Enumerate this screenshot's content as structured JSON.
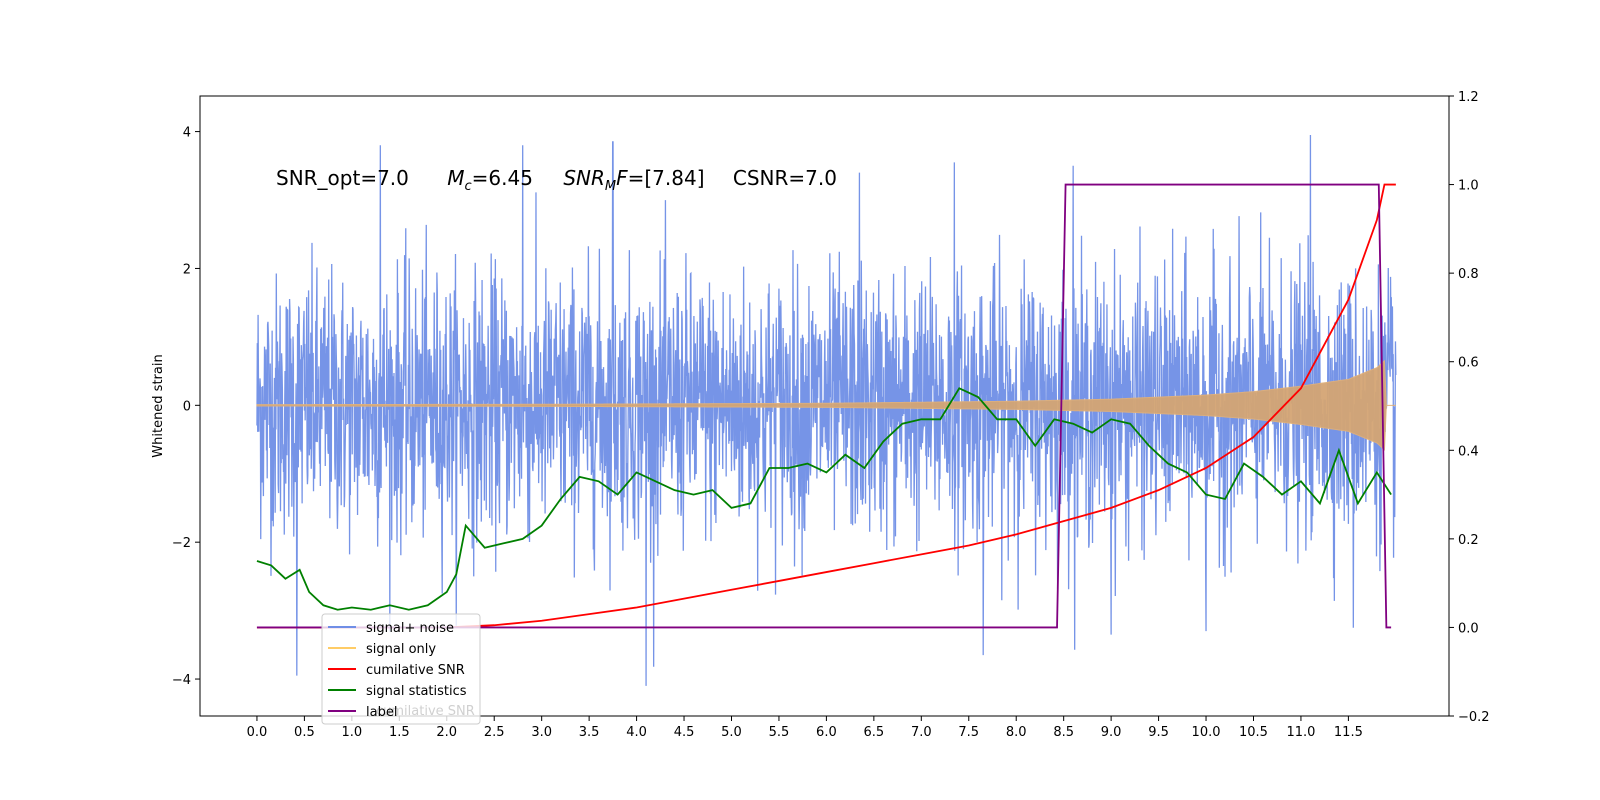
{
  "chart_data": {
    "type": "line",
    "ylabel": "Whitened strain",
    "annotation": {
      "snr_opt": "SNR_opt=7.0",
      "mc_symbol": "M",
      "mc_sub": "c",
      "mc_value": "=6.45",
      "snrmf_symbol": "SNR",
      "snrmf_sub": "M",
      "snrmf_f": "F",
      "snrmf_value": "=[7.84]",
      "csnr": "CSNR=7.0"
    },
    "x_ticks": [
      "0.0",
      "0.5",
      "1.0",
      "1.5",
      "2.0",
      "2.5",
      "3.0",
      "3.5",
      "4.0",
      "4.5",
      "5.0",
      "5.5",
      "6.0",
      "6.5",
      "7.0",
      "7.5",
      "8.0",
      "8.5",
      "9.0",
      "9.5",
      "10.0",
      "10.5",
      "11.0",
      "11.5"
    ],
    "xlim": [
      -0.6,
      12.56
    ],
    "y_left": {
      "ylim": [
        -4.54,
        4.52
      ],
      "ticks": [
        "4",
        "2",
        "0",
        "−2",
        "−4"
      ],
      "tick_values": [
        4,
        2,
        0,
        -2,
        -4
      ]
    },
    "y_right": {
      "ylim": [
        -0.2,
        1.2
      ],
      "ticks": [
        "1.2",
        "1.0",
        "0.8",
        "0.6",
        "0.4",
        "0.2",
        "0.0",
        "−0.2"
      ],
      "tick_values": [
        1.2,
        1.0,
        0.8,
        0.6,
        0.4,
        0.2,
        0.0,
        -0.2
      ]
    },
    "series": [
      {
        "name": "signal+ noise",
        "color": "#6f8ee6",
        "axis": "left",
        "x_range": [
          0.0,
          12.0
        ],
        "sample_count": 3000,
        "envelope_typical": 1.5,
        "peak_points": [
          [
            1.3,
            3.8
          ],
          [
            1.45,
            3.85
          ],
          [
            2.8,
            3.8
          ],
          [
            3.75,
            3.85
          ],
          [
            6.35,
            3.4
          ],
          [
            7.35,
            3.55
          ],
          [
            8.6,
            3.5
          ],
          [
            11.1,
            3.95
          ],
          [
            11.55,
            4.1
          ],
          [
            0.42,
            -3.95
          ],
          [
            4.1,
            -4.1
          ],
          [
            7.65,
            -3.65
          ],
          [
            9.0,
            -3.35
          ],
          [
            10.0,
            -3.3
          ],
          [
            11.55,
            -3.25
          ]
        ]
      },
      {
        "name": "signal only",
        "color": "#d4a574",
        "axis": "left",
        "x_range": [
          0.0,
          12.0
        ],
        "amplitude_points": [
          [
            0.0,
            0.01
          ],
          [
            3.0,
            0.015
          ],
          [
            6.0,
            0.03
          ],
          [
            8.0,
            0.06
          ],
          [
            9.0,
            0.09
          ],
          [
            10.0,
            0.15
          ],
          [
            10.5,
            0.2
          ],
          [
            11.0,
            0.28
          ],
          [
            11.5,
            0.38
          ],
          [
            11.8,
            0.55
          ],
          [
            11.88,
            0.65
          ],
          [
            11.9,
            0.0
          ],
          [
            12.0,
            0.0
          ]
        ]
      },
      {
        "name": "cumilative SNR",
        "color": "#ff0000",
        "axis": "right",
        "x": [
          0.0,
          1.0,
          2.0,
          2.5,
          3.0,
          3.5,
          4.0,
          4.5,
          5.0,
          5.5,
          6.0,
          6.5,
          7.0,
          7.5,
          8.0,
          8.5,
          9.0,
          9.5,
          10.0,
          10.5,
          11.0,
          11.5,
          11.8,
          11.88,
          11.9,
          12.0
        ],
        "y": [
          0.0,
          0.0,
          0.0,
          0.005,
          0.015,
          0.03,
          0.045,
          0.065,
          0.085,
          0.105,
          0.125,
          0.145,
          0.165,
          0.185,
          0.21,
          0.24,
          0.27,
          0.31,
          0.36,
          0.43,
          0.54,
          0.74,
          0.92,
          1.0,
          1.0,
          1.0
        ]
      },
      {
        "name": "signal statistics",
        "color": "#008000",
        "axis": "right",
        "x": [
          0.0,
          0.15,
          0.3,
          0.45,
          0.55,
          0.7,
          0.85,
          1.0,
          1.2,
          1.4,
          1.6,
          1.8,
          2.0,
          2.1,
          2.2,
          2.4,
          2.6,
          2.8,
          3.0,
          3.2,
          3.4,
          3.6,
          3.8,
          4.0,
          4.2,
          4.4,
          4.6,
          4.8,
          5.0,
          5.2,
          5.4,
          5.6,
          5.8,
          6.0,
          6.2,
          6.4,
          6.6,
          6.8,
          7.0,
          7.2,
          7.4,
          7.5,
          7.6,
          7.8,
          8.0,
          8.2,
          8.4,
          8.6,
          8.8,
          9.0,
          9.2,
          9.4,
          9.6,
          9.8,
          10.0,
          10.2,
          10.4,
          10.6,
          10.8,
          11.0,
          11.2,
          11.4,
          11.6,
          11.8,
          11.95
        ],
        "y": [
          0.15,
          0.14,
          0.11,
          0.13,
          0.08,
          0.05,
          0.04,
          0.045,
          0.04,
          0.05,
          0.04,
          0.05,
          0.08,
          0.12,
          0.23,
          0.18,
          0.19,
          0.2,
          0.23,
          0.29,
          0.34,
          0.33,
          0.3,
          0.35,
          0.33,
          0.31,
          0.3,
          0.31,
          0.27,
          0.28,
          0.36,
          0.36,
          0.37,
          0.35,
          0.39,
          0.36,
          0.42,
          0.46,
          0.47,
          0.47,
          0.54,
          0.53,
          0.52,
          0.47,
          0.47,
          0.41,
          0.47,
          0.46,
          0.44,
          0.47,
          0.46,
          0.41,
          0.37,
          0.35,
          0.3,
          0.29,
          0.37,
          0.34,
          0.3,
          0.33,
          0.28,
          0.4,
          0.28,
          0.35,
          0.3
        ]
      },
      {
        "name": "label",
        "color": "#800080",
        "axis": "right",
        "x": [
          0.0,
          8.43,
          8.52,
          11.82,
          11.9,
          11.95
        ],
        "y": [
          0.0,
          0.0,
          1.0,
          1.0,
          0.0,
          0.0
        ]
      }
    ],
    "legend": {
      "placement": "lower-left",
      "entries": [
        {
          "label": "signal+ noise",
          "color": "#6f8ee6"
        },
        {
          "label": "signal only",
          "color": "#ffcc66"
        },
        {
          "label": "cumilative SNR",
          "color": "#ff0000"
        },
        {
          "label": "signal statistics",
          "color": "#008000"
        },
        {
          "label": "label",
          "color": "#800080"
        }
      ],
      "ghost_text": "cumilative SNR"
    },
    "grid": false
  }
}
